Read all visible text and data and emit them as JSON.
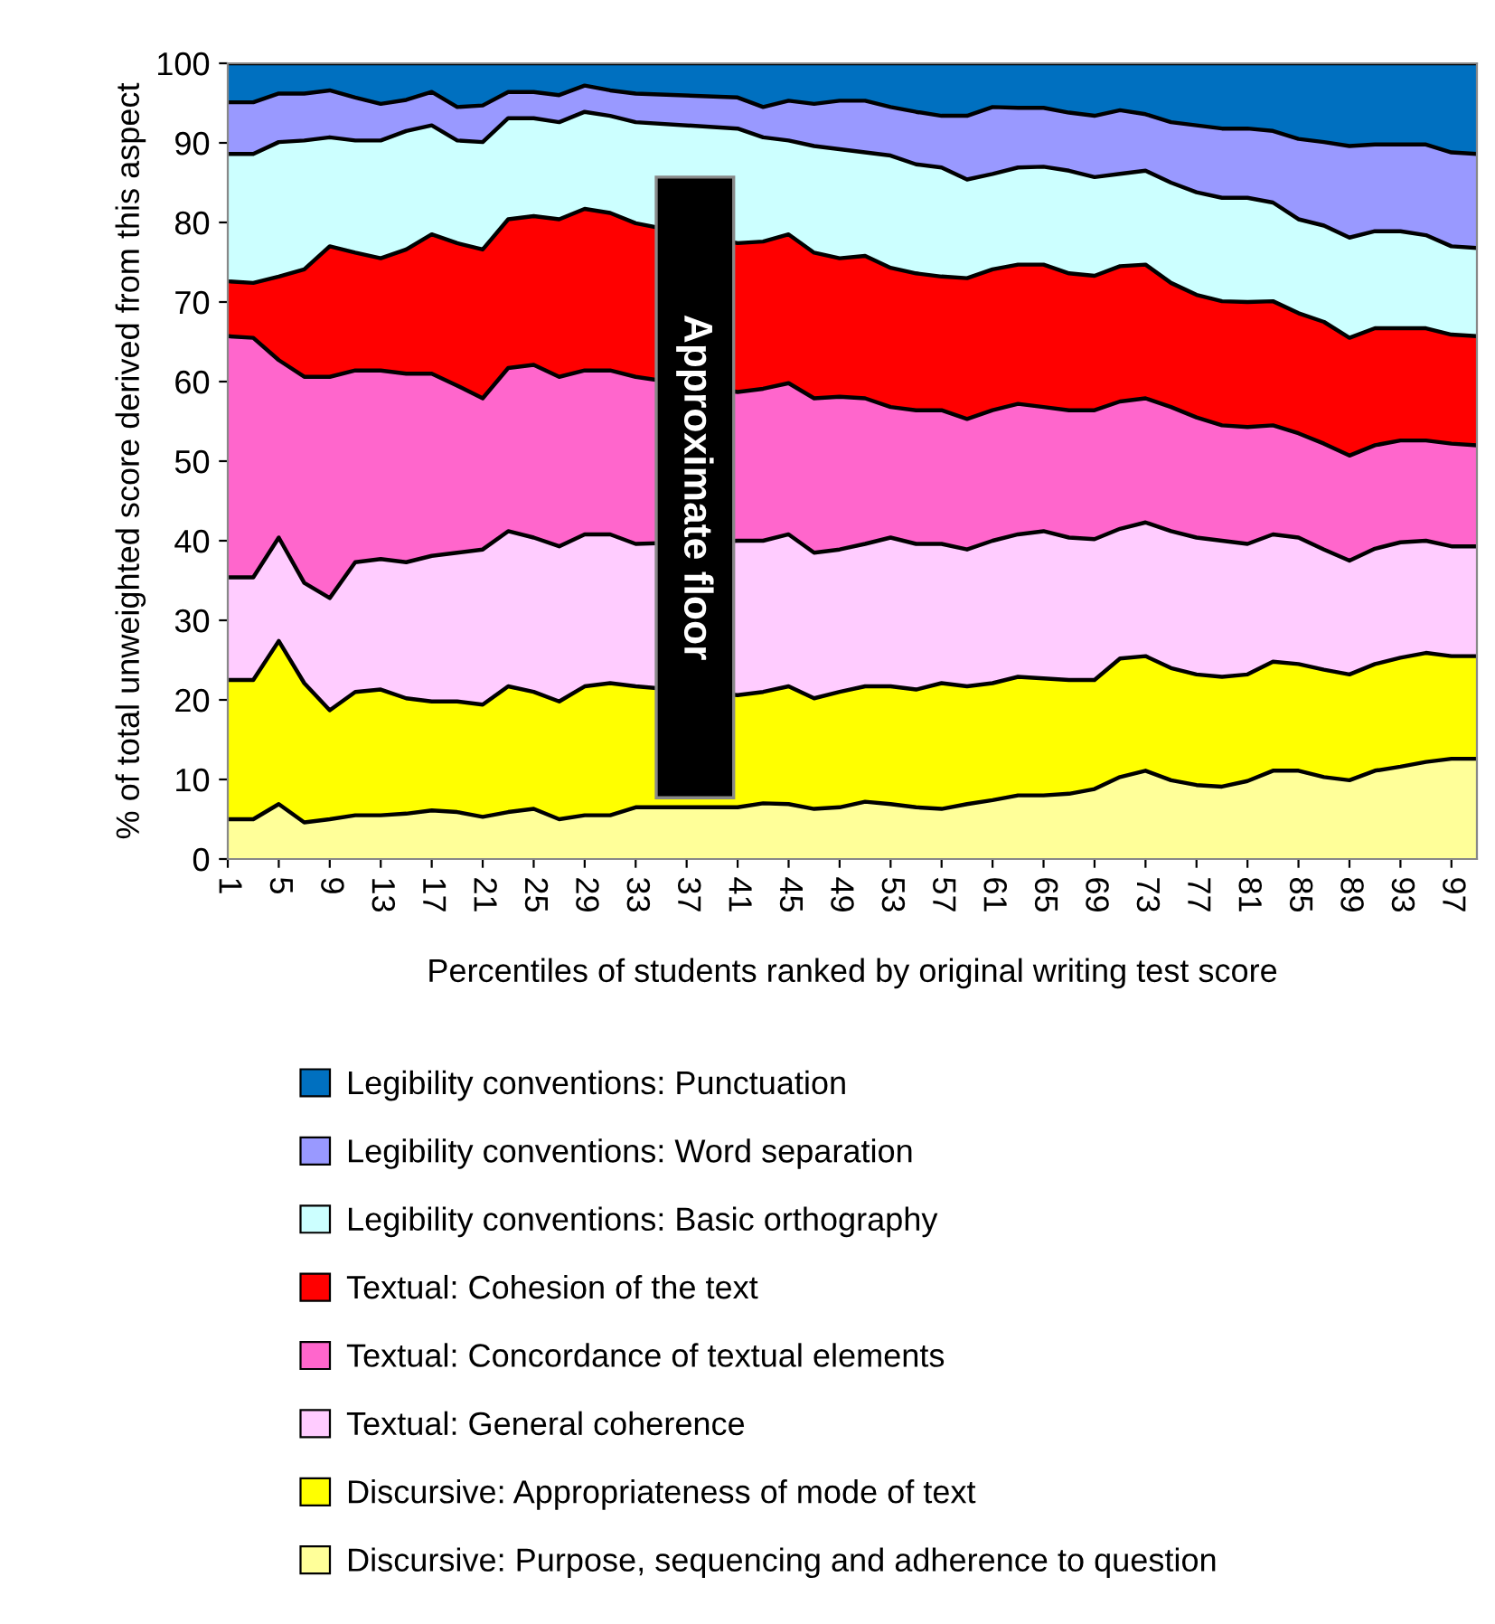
{
  "chart_data": {
    "type": "area",
    "stacked": true,
    "xlabel": "Percentiles of students ranked by original writing test score",
    "ylabel": "% of total unweighted score derived from this aspect",
    "x": [
      1,
      3,
      5,
      7,
      9,
      11,
      13,
      15,
      17,
      19,
      21,
      23,
      25,
      27,
      29,
      31,
      33,
      41,
      43,
      45,
      47,
      49,
      51,
      53,
      55,
      57,
      59,
      61,
      63,
      65,
      67,
      69,
      71,
      73,
      75,
      77,
      79,
      81,
      83,
      85,
      87,
      89,
      91,
      93,
      95,
      97,
      99
    ],
    "xlim": [
      1,
      99
    ],
    "xticks": [
      1,
      5,
      9,
      13,
      17,
      21,
      25,
      29,
      33,
      37,
      41,
      45,
      49,
      53,
      57,
      61,
      65,
      69,
      73,
      77,
      81,
      85,
      89,
      93,
      97
    ],
    "ylim": [
      0,
      100
    ],
    "yticks": [
      0,
      10,
      20,
      30,
      40,
      50,
      60,
      70,
      80,
      90,
      100
    ],
    "grid": false,
    "legend": "bottom",
    "annotations": [
      "Approximate floor"
    ],
    "series": [
      {
        "name": "Discursive: Purpose, sequencing and adherence to question",
        "color": "#ffff99",
        "values": [
          5.0,
          5.0,
          6.9,
          4.6,
          5.0,
          5.5,
          5.5,
          5.7,
          6.1,
          5.9,
          5.3,
          5.9,
          6.3,
          5.0,
          5.5,
          5.5,
          6.5,
          6.5,
          7.0,
          6.9,
          6.3,
          6.5,
          7.2,
          6.9,
          6.5,
          6.3,
          6.9,
          7.4,
          8.0,
          8.0,
          8.2,
          8.8,
          10.3,
          11.1,
          9.9,
          9.3,
          9.1,
          9.8,
          11.1,
          11.1,
          10.3,
          9.9,
          11.1,
          11.6,
          12.2,
          12.6,
          12.6
        ]
      },
      {
        "name": "Discursive: Appropriateness of mode of text",
        "color": "#ffff00",
        "values": [
          17.5,
          17.5,
          20.5,
          17.5,
          13.7,
          15.5,
          15.8,
          14.5,
          13.7,
          13.9,
          14.1,
          15.8,
          14.7,
          14.8,
          16.2,
          16.6,
          15.2,
          14.1,
          14.0,
          14.8,
          13.9,
          14.5,
          14.5,
          14.8,
          14.8,
          15.8,
          14.8,
          14.7,
          14.9,
          14.7,
          14.3,
          13.7,
          14.9,
          14.4,
          14.1,
          13.9,
          13.8,
          13.4,
          13.7,
          13.4,
          13.5,
          13.3,
          13.4,
          13.7,
          13.7,
          12.9,
          12.9
        ]
      },
      {
        "name": "Textual: General coherence",
        "color": "#ffccff",
        "values": [
          12.9,
          12.9,
          13.0,
          12.6,
          14.1,
          16.3,
          16.4,
          17.1,
          18.3,
          18.7,
          19.5,
          19.5,
          19.4,
          19.5,
          19.1,
          18.7,
          17.9,
          19.4,
          19.0,
          19.1,
          18.3,
          17.9,
          17.9,
          18.7,
          18.3,
          17.5,
          17.2,
          17.9,
          17.9,
          18.5,
          17.9,
          17.7,
          16.3,
          16.8,
          17.2,
          17.2,
          17.1,
          16.4,
          16.0,
          15.9,
          15.1,
          14.3,
          14.5,
          14.5,
          14.1,
          13.8,
          13.8
        ]
      },
      {
        "name": "Textual: Concordance of textual elements",
        "color": "#ff66cc",
        "values": [
          30.3,
          30.1,
          22.3,
          25.9,
          27.8,
          24.1,
          23.7,
          23.7,
          22.9,
          21.0,
          19.0,
          20.5,
          21.7,
          21.3,
          20.6,
          20.6,
          21.0,
          18.7,
          19.1,
          19.0,
          19.4,
          19.2,
          18.3,
          16.4,
          16.8,
          16.8,
          16.4,
          16.4,
          16.4,
          15.6,
          16.0,
          16.2,
          16.0,
          15.6,
          15.6,
          15.1,
          14.5,
          14.7,
          13.7,
          13.1,
          13.3,
          13.2,
          13.0,
          12.8,
          12.6,
          12.9,
          12.7
        ]
      },
      {
        "name": "Textual: Cohesion of the text",
        "color": "#ff0000",
        "values": [
          6.9,
          6.9,
          10.5,
          13.5,
          16.4,
          14.8,
          14.1,
          15.6,
          17.5,
          17.9,
          18.7,
          18.7,
          18.7,
          19.8,
          20.3,
          19.8,
          19.3,
          18.7,
          18.5,
          18.7,
          18.3,
          17.4,
          17.9,
          17.5,
          17.2,
          16.8,
          17.7,
          17.7,
          17.5,
          17.9,
          17.2,
          16.9,
          17.0,
          16.8,
          15.6,
          15.4,
          15.6,
          15.7,
          15.6,
          15.1,
          15.3,
          14.8,
          14.7,
          14.1,
          14.1,
          13.7,
          13.7
        ]
      },
      {
        "name": "Legibility conventions: Basic orthography",
        "color": "#ccffff",
        "values": [
          16.0,
          16.2,
          16.9,
          16.2,
          13.7,
          14.1,
          14.8,
          14.9,
          13.7,
          12.9,
          13.5,
          12.7,
          12.3,
          12.2,
          12.2,
          12.2,
          12.7,
          14.4,
          13.1,
          11.8,
          13.4,
          13.7,
          13.0,
          14.1,
          13.7,
          13.7,
          12.4,
          12.0,
          12.2,
          12.3,
          12.9,
          12.4,
          11.6,
          11.8,
          12.6,
          12.9,
          13.0,
          13.1,
          12.4,
          11.8,
          12.1,
          12.6,
          12.2,
          12.2,
          11.7,
          11.1,
          11.1
        ]
      },
      {
        "name": "Legibility conventions: Word separation",
        "color": "#9999ff",
        "values": [
          6.5,
          6.5,
          6.1,
          5.9,
          5.9,
          5.4,
          4.6,
          3.9,
          4.2,
          4.2,
          4.6,
          3.3,
          3.3,
          3.4,
          3.3,
          3.2,
          3.6,
          3.9,
          3.8,
          5.0,
          5.3,
          6.1,
          6.5,
          6.1,
          6.6,
          6.5,
          8.0,
          8.4,
          7.5,
          7.4,
          7.3,
          7.7,
          8.0,
          7.1,
          7.6,
          8.4,
          8.7,
          8.7,
          9.0,
          10.1,
          10.5,
          11.5,
          10.9,
          10.9,
          11.4,
          11.8,
          11.8
        ]
      },
      {
        "name": "Legibility conventions: Punctuation",
        "color": "#0070c0",
        "values": [
          4.9,
          4.9,
          3.8,
          3.8,
          3.4,
          4.3,
          5.1,
          4.6,
          3.6,
          5.5,
          5.3,
          3.6,
          3.6,
          4.0,
          2.8,
          3.4,
          3.8,
          4.3,
          5.5,
          4.7,
          5.1,
          4.7,
          4.7,
          5.5,
          6.1,
          6.6,
          6.6,
          5.5,
          5.6,
          5.6,
          6.2,
          6.6,
          5.9,
          6.4,
          7.4,
          7.8,
          8.2,
          8.2,
          8.5,
          9.5,
          9.9,
          10.4,
          10.2,
          10.2,
          10.2,
          11.2,
          11.4
        ]
      }
    ]
  }
}
